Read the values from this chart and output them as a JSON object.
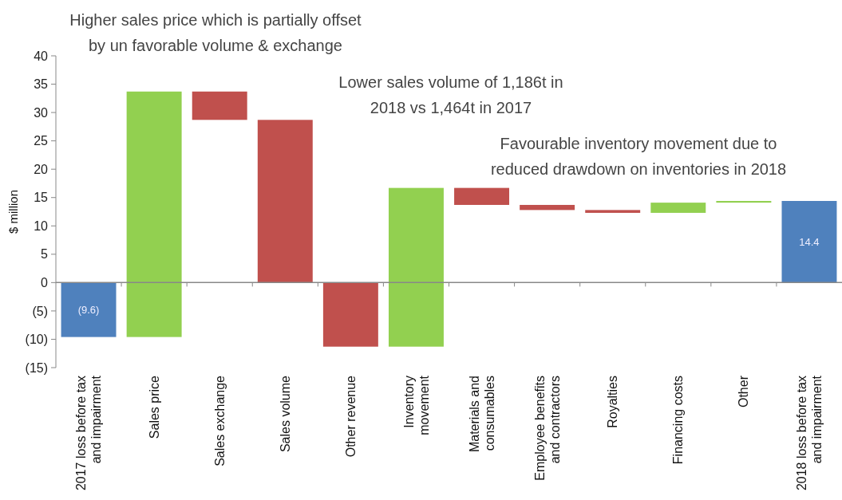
{
  "chart_data": {
    "type": "bar",
    "ylabel": "$ million",
    "categories": [
      "2017 loss before tax\nand impairment",
      "Sales price",
      "Sales exchange",
      "Sales volume",
      "Other revenue",
      "Inventory\nmovement",
      "Materials and\nconsumables",
      "Employee benefits\nand contractors",
      "Royalties",
      "Financing costs",
      "Other",
      "2018 loss before tax\nand impairment"
    ],
    "values": [
      -9.6,
      43.3,
      -5.0,
      -28.7,
      -11.3,
      28.0,
      -3.0,
      -0.9,
      -0.5,
      1.8,
      0.3,
      14.4
    ],
    "base": [
      0,
      -9.6,
      33.7,
      28.7,
      0,
      -11.3,
      16.7,
      13.7,
      12.8,
      12.3,
      14.1,
      0
    ],
    "colors": [
      "#4f81bd",
      "#92d050",
      "#c0504d",
      "#c0504d",
      "#c0504d",
      "#92d050",
      "#c0504d",
      "#c0504d",
      "#c0504d",
      "#92d050",
      "#92d050",
      "#4f81bd"
    ],
    "value_labels": [
      "(9.6)",
      null,
      null,
      null,
      null,
      null,
      null,
      null,
      null,
      null,
      null,
      "14.4"
    ],
    "ylim": [
      -15,
      40
    ],
    "yticks": [
      {
        "value": -15,
        "label": "(15)"
      },
      {
        "value": -10,
        "label": "(10)"
      },
      {
        "value": -5,
        "label": "(5)"
      },
      0,
      5,
      10,
      15,
      20,
      25,
      30,
      35,
      40
    ],
    "annotations": [
      "Higher  sales  price which is partially offset\nby un favorable volume & exchange",
      "Lower sales volume of 1,186t  in\n2018 vs  1,464t  in 2017",
      "Favourable inventory movement due to\nreduced drawdown on inventories in 2018"
    ]
  }
}
